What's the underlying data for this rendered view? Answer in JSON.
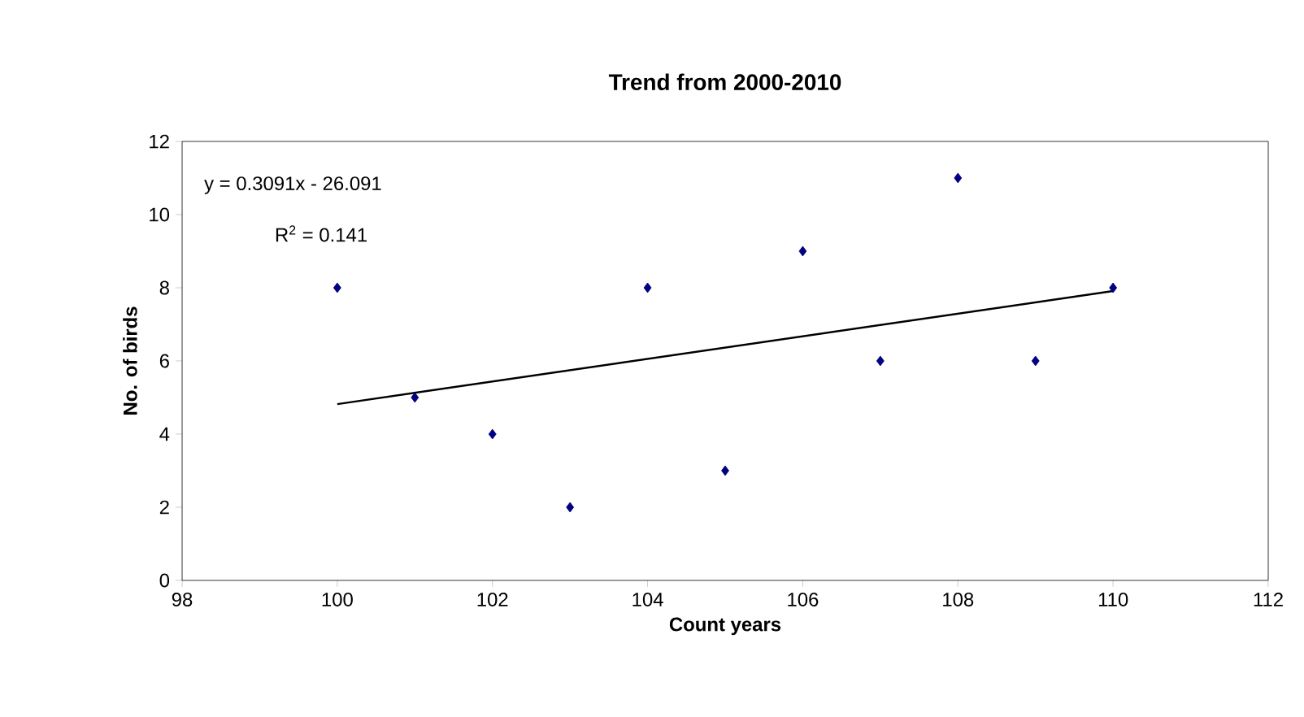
{
  "chart_data": {
    "type": "scatter",
    "title": "Trend from 2000-2010",
    "xlabel": "Count years",
    "ylabel": "No. of birds",
    "xlim": [
      98,
      112
    ],
    "xticks": [
      98,
      100,
      102,
      104,
      106,
      108,
      110,
      112
    ],
    "ylim": [
      0,
      12
    ],
    "yticks": [
      0,
      2,
      4,
      6,
      8,
      10,
      12
    ],
    "marker": "diamond",
    "annotations": [
      "y = 0.3091x - 26.091",
      "R$^{2}$ = 0.141"
    ],
    "series": [
      {
        "type": "scatter",
        "color": "#000080",
        "x": [
          100,
          101,
          102,
          103,
          104,
          105,
          106,
          107,
          108,
          109,
          110
        ],
        "values": [
          8,
          5,
          4,
          2,
          8,
          3,
          9,
          6,
          11,
          6,
          8
        ]
      },
      {
        "type": "line",
        "color": "#000000",
        "x": [
          100,
          110
        ],
        "values": [
          4.82,
          7.91
        ],
        "marker": "none",
        "line_style": "solid"
      }
    ]
  }
}
